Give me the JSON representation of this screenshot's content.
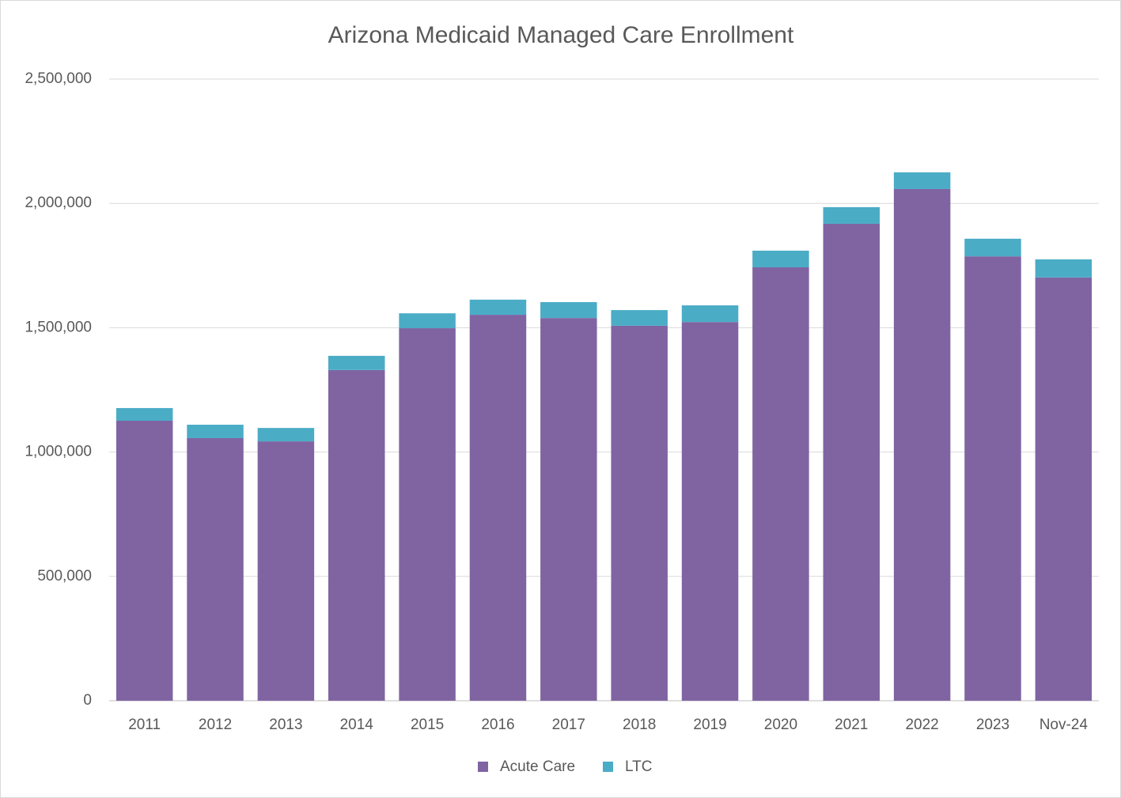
{
  "chart_data": {
    "type": "stacked_bar",
    "title": "Arizona Medicaid Managed Care Enrollment",
    "categories": [
      "2011",
      "2012",
      "2013",
      "2014",
      "2015",
      "2016",
      "2017",
      "2018",
      "2019",
      "2020",
      "2021",
      "2022",
      "2023",
      "Nov-24"
    ],
    "series": [
      {
        "name": "Acute Care",
        "color": "#8064a2",
        "values": [
          1126000,
          1056000,
          1043000,
          1330000,
          1498000,
          1552000,
          1539000,
          1508000,
          1523000,
          1743000,
          1918000,
          2058000,
          1787000,
          1702000
        ]
      },
      {
        "name": "LTC",
        "color": "#4bacc6",
        "values": [
          51000,
          54000,
          54000,
          57000,
          60000,
          61000,
          64000,
          63000,
          67000,
          67000,
          67000,
          67000,
          71000,
          73000
        ]
      }
    ],
    "ylim": [
      0,
      2500000
    ],
    "yticks": [
      0,
      {
        "value": 500000,
        "label": "500,000"
      },
      {
        "value": 1000000,
        "label": "1,000,000"
      },
      {
        "value": 1500000,
        "label": "1,500,000"
      },
      {
        "value": 2000000,
        "label": "2,000,000"
      },
      {
        "value": 2500000,
        "label": "2,500,000"
      }
    ],
    "grid": true,
    "legend": "bottom"
  }
}
